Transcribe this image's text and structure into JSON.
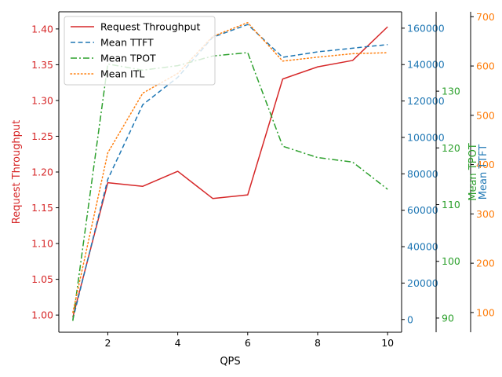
{
  "chart_data": {
    "type": "line",
    "xlabel": "QPS",
    "x": [
      1,
      2,
      3,
      4,
      5,
      6,
      7,
      8,
      9,
      10
    ],
    "xlim": [
      0.6,
      10.4
    ],
    "xticks": [
      2,
      4,
      6,
      8,
      10
    ],
    "grid": false,
    "legend_position": "top-left",
    "axes": [
      {
        "id": "throughput",
        "label": "Request Throughput",
        "side": "left",
        "color": "#d62728",
        "ylim": [
          0.976,
          1.424
        ],
        "ticks": [
          1.0,
          1.05,
          1.1,
          1.15,
          1.2,
          1.25,
          1.3,
          1.35,
          1.4
        ],
        "tick_labels": [
          "1.00",
          "1.05",
          "1.10",
          "1.15",
          "1.20",
          "1.25",
          "1.30",
          "1.35",
          "1.40"
        ]
      },
      {
        "id": "ttft",
        "label": "Mean TTFT",
        "side": "right",
        "color": "#1f77b4",
        "ylim": [
          -7000,
          169000
        ],
        "ticks": [
          0,
          20000,
          40000,
          60000,
          80000,
          100000,
          120000,
          140000,
          160000
        ],
        "tick_labels": [
          "0",
          "20000",
          "40000",
          "60000",
          "80000",
          "100000",
          "120000",
          "140000",
          "160000"
        ]
      },
      {
        "id": "tpot",
        "label": "Mean TPOT",
        "side": "right",
        "color": "#2ca02c",
        "ylim": [
          87.5,
          144
        ],
        "ticks": [
          90,
          100,
          110,
          120,
          130
        ],
        "tick_labels": [
          "90",
          "100",
          "110",
          "120",
          "130"
        ]
      },
      {
        "id": "itl",
        "label": "Mean ITL",
        "side": "right",
        "color": "#ff7f0e",
        "ylim": [
          60,
          710
        ],
        "ticks": [
          100,
          200,
          300,
          400,
          500,
          600,
          700
        ],
        "tick_labels": [
          "100",
          "200",
          "300",
          "400",
          "500",
          "600",
          "700"
        ]
      }
    ],
    "series": [
      {
        "name": "Request Throughput",
        "axis": "throughput",
        "color": "#d62728",
        "linestyle": "solid",
        "values": [
          0.997,
          1.185,
          1.18,
          1.201,
          1.163,
          1.168,
          1.33,
          1.347,
          1.356,
          1.403
        ]
      },
      {
        "name": "Mean TTFT",
        "axis": "ttft",
        "color": "#1f77b4",
        "linestyle": "dashed",
        "values": [
          0,
          77000,
          118000,
          133000,
          155000,
          162000,
          144000,
          147000,
          149000,
          151000
        ]
      },
      {
        "name": "Mean TPOT",
        "axis": "tpot",
        "color": "#2ca02c",
        "linestyle": "dashdot",
        "values": [
          89.5,
          134.8,
          133.7,
          134.5,
          136.2,
          136.8,
          120.3,
          118.3,
          117.5,
          112.7
        ]
      },
      {
        "name": "Mean ITL",
        "axis": "itl",
        "color": "#ff7f0e",
        "linestyle": "dotted",
        "values": [
          100,
          424,
          545,
          585,
          660,
          688,
          610,
          618,
          625,
          627
        ]
      }
    ]
  }
}
